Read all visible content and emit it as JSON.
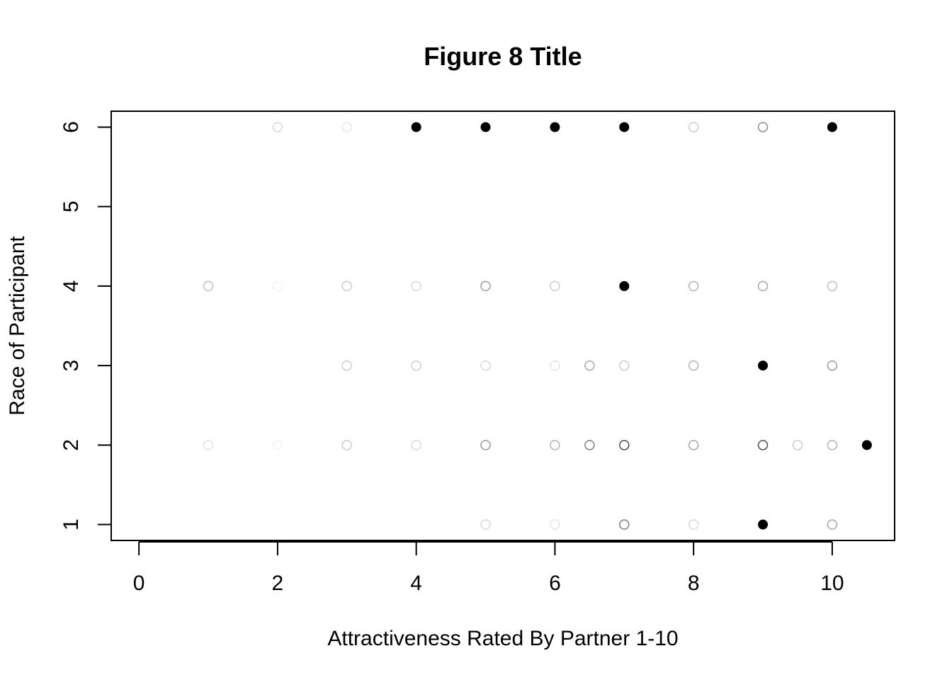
{
  "chart_data": {
    "type": "scatter",
    "title": "Figure 8 Title",
    "xlabel": "Attractiveness Rated By Partner 1-10",
    "ylabel": "Race of Participant",
    "xlim": [
      -0.4,
      10.9
    ],
    "ylim": [
      0.8,
      6.2
    ],
    "x_ticks": [
      0,
      2,
      4,
      6,
      8,
      10
    ],
    "y_ticks": [
      1,
      2,
      3,
      4,
      5,
      6
    ],
    "grid": false,
    "legend": "none",
    "marker_color": "#000000",
    "points": [
      {
        "x": 2,
        "y": 6,
        "opacity": 0.15,
        "filled": false
      },
      {
        "x": 3,
        "y": 6,
        "opacity": 0.1,
        "filled": false
      },
      {
        "x": 4,
        "y": 6,
        "opacity": 1,
        "filled": true
      },
      {
        "x": 5,
        "y": 6,
        "opacity": 1,
        "filled": true
      },
      {
        "x": 6,
        "y": 6,
        "opacity": 1,
        "filled": true
      },
      {
        "x": 7,
        "y": 6,
        "opacity": 1,
        "filled": true
      },
      {
        "x": 8,
        "y": 6,
        "opacity": 0.2,
        "filled": false
      },
      {
        "x": 9,
        "y": 6,
        "opacity": 0.45,
        "filled": false
      },
      {
        "x": 10,
        "y": 6,
        "opacity": 1,
        "filled": true
      },
      {
        "x": 1,
        "y": 4,
        "opacity": 0.25,
        "filled": false
      },
      {
        "x": 2,
        "y": 4,
        "opacity": 0.05,
        "filled": false
      },
      {
        "x": 3,
        "y": 4,
        "opacity": 0.2,
        "filled": false
      },
      {
        "x": 4,
        "y": 4,
        "opacity": 0.15,
        "filled": false
      },
      {
        "x": 5,
        "y": 4,
        "opacity": 0.4,
        "filled": false
      },
      {
        "x": 6,
        "y": 4,
        "opacity": 0.2,
        "filled": false
      },
      {
        "x": 7,
        "y": 4,
        "opacity": 1,
        "filled": true
      },
      {
        "x": 8,
        "y": 4,
        "opacity": 0.3,
        "filled": false
      },
      {
        "x": 9,
        "y": 4,
        "opacity": 0.35,
        "filled": false
      },
      {
        "x": 10,
        "y": 4,
        "opacity": 0.25,
        "filled": false
      },
      {
        "x": 3,
        "y": 3,
        "opacity": 0.2,
        "filled": false
      },
      {
        "x": 4,
        "y": 3,
        "opacity": 0.2,
        "filled": false
      },
      {
        "x": 5,
        "y": 3,
        "opacity": 0.15,
        "filled": false
      },
      {
        "x": 6,
        "y": 3,
        "opacity": 0.1,
        "filled": false
      },
      {
        "x": 6.5,
        "y": 3,
        "opacity": 0.35,
        "filled": false
      },
      {
        "x": 7,
        "y": 3,
        "opacity": 0.2,
        "filled": false
      },
      {
        "x": 8,
        "y": 3,
        "opacity": 0.3,
        "filled": false
      },
      {
        "x": 9,
        "y": 3,
        "opacity": 1,
        "filled": true
      },
      {
        "x": 10,
        "y": 3,
        "opacity": 0.4,
        "filled": false
      },
      {
        "x": 1,
        "y": 2,
        "opacity": 0.12,
        "filled": false
      },
      {
        "x": 2,
        "y": 2,
        "opacity": 0.05,
        "filled": false
      },
      {
        "x": 3,
        "y": 2,
        "opacity": 0.2,
        "filled": false
      },
      {
        "x": 4,
        "y": 2,
        "opacity": 0.15,
        "filled": false
      },
      {
        "x": 5,
        "y": 2,
        "opacity": 0.4,
        "filled": false
      },
      {
        "x": 6,
        "y": 2,
        "opacity": 0.3,
        "filled": false
      },
      {
        "x": 6.5,
        "y": 2,
        "opacity": 0.5,
        "filled": false
      },
      {
        "x": 7,
        "y": 2,
        "opacity": 0.7,
        "filled": false
      },
      {
        "x": 8,
        "y": 2,
        "opacity": 0.35,
        "filled": false
      },
      {
        "x": 9,
        "y": 2,
        "opacity": 0.7,
        "filled": false
      },
      {
        "x": 9.5,
        "y": 2,
        "opacity": 0.2,
        "filled": false
      },
      {
        "x": 10,
        "y": 2,
        "opacity": 0.3,
        "filled": false
      },
      {
        "x": 10.5,
        "y": 2,
        "opacity": 1,
        "filled": true
      },
      {
        "x": 5,
        "y": 1,
        "opacity": 0.15,
        "filled": false
      },
      {
        "x": 6,
        "y": 1,
        "opacity": 0.1,
        "filled": false
      },
      {
        "x": 7,
        "y": 1,
        "opacity": 0.5,
        "filled": false
      },
      {
        "x": 8,
        "y": 1,
        "opacity": 0.15,
        "filled": false
      },
      {
        "x": 9,
        "y": 1,
        "opacity": 1,
        "filled": true
      },
      {
        "x": 10,
        "y": 1,
        "opacity": 0.35,
        "filled": false
      }
    ]
  }
}
